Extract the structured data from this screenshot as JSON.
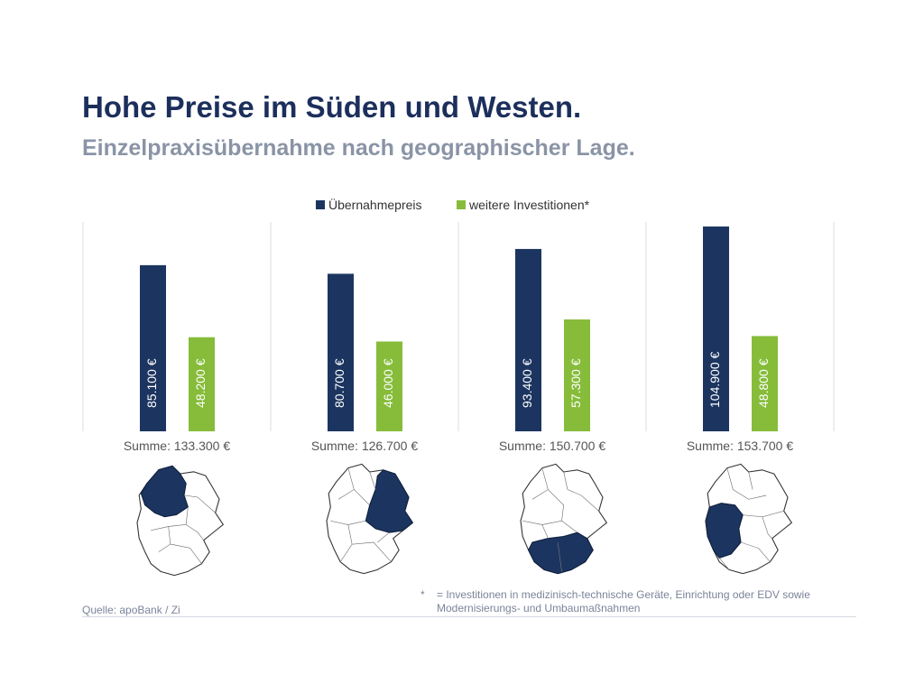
{
  "header": {
    "title": "Hohe Preise im Süden und Westen.",
    "subtitle": "Einzelpraxisübernahme nach geographischer Lage."
  },
  "chart_data": {
    "type": "bar",
    "title": "Hohe Preise im Süden und Westen.",
    "subtitle": "Einzelpraxisübernahme nach geographischer Lage.",
    "legend_position": "top-center",
    "categories": [
      "Summe: 133.300 €",
      "Summe: 126.700 €",
      "Summe: 150.700 €",
      "Summe: 153.700 €"
    ],
    "series": [
      {
        "name": "Übernahmepreis",
        "color": "#1c3560",
        "values": [
          85100,
          80700,
          93400,
          104900
        ],
        "labels": [
          "85.100 €",
          "80.700 €",
          "93.400 €",
          "104.900 €"
        ]
      },
      {
        "name": "weitere Investitionen*",
        "color": "#86bc3a",
        "values": [
          48200,
          46000,
          57300,
          48800
        ],
        "labels": [
          "48.200 €",
          "46.000 €",
          "57.300 €",
          "48.800 €"
        ]
      }
    ],
    "ylim": [
      0,
      110000
    ],
    "grid": false
  },
  "maps": [
    {
      "highlight": "north-west"
    },
    {
      "highlight": "east"
    },
    {
      "highlight": "south"
    },
    {
      "highlight": "west"
    }
  ],
  "footer": {
    "source": "Quelle: apoBank / Zi",
    "footnote_mark": "*",
    "footnote_text": "= Investitionen in medizinisch-technische Geräte, Einrichtung oder EDV sowie Modernisierungs- und Umbaumaßnahmen"
  }
}
